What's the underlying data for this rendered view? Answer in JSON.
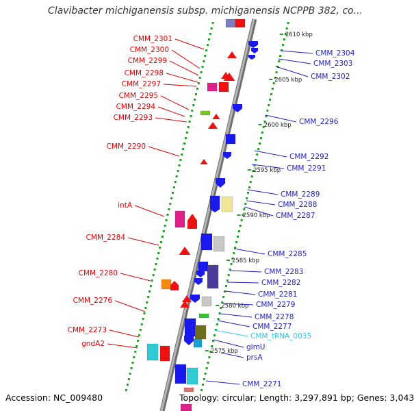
{
  "title": "Clavibacter michiganensis subsp. michiganensis NCPPB 382, co...",
  "footer": {
    "accession": "Accession: NC_009480",
    "topology": "Topology: circular; Length: 3,297,891 bp; Genes: 3,043"
  },
  "colors": {
    "left_label": "#e00000",
    "right_label": "#1f1fbf",
    "trna_label": "#33c4e6",
    "backbone": "#8c8c8c",
    "dotted_track": "#2a9a2a"
  },
  "ticks": [
    "2610 kbp",
    "2605 kbp",
    "2600 kbp",
    "2595 kbp",
    "2590 kbp",
    "2585 kbp",
    "2580 kbp",
    "2575 kbp"
  ],
  "left_labels": [
    "CMM_2301",
    "CMM_2300",
    "CMM_2299",
    "CMM_2298",
    "CMM_2297",
    "CMM_2295",
    "CMM_2294",
    "CMM_2293",
    "CMM_2290",
    "intA",
    "CMM_2284",
    "CMM_2280",
    "CMM_2276",
    "CMM_2273",
    "gndA2"
  ],
  "right_labels": [
    "CMM_2304",
    "CMM_2303",
    "CMM_2302",
    "CMM_2296",
    "CMM_2292",
    "CMM_2291",
    "CMM_2289",
    "CMM_2288",
    "CMM_2287",
    "CMM_2285",
    "CMM_2283",
    "CMM_2282",
    "CMM_2281",
    "CMM_2279",
    "CMM_2278",
    "CMM_2277",
    "CMM_tRNA_0035",
    "glmU",
    "prsA",
    "CMM_2271"
  ]
}
